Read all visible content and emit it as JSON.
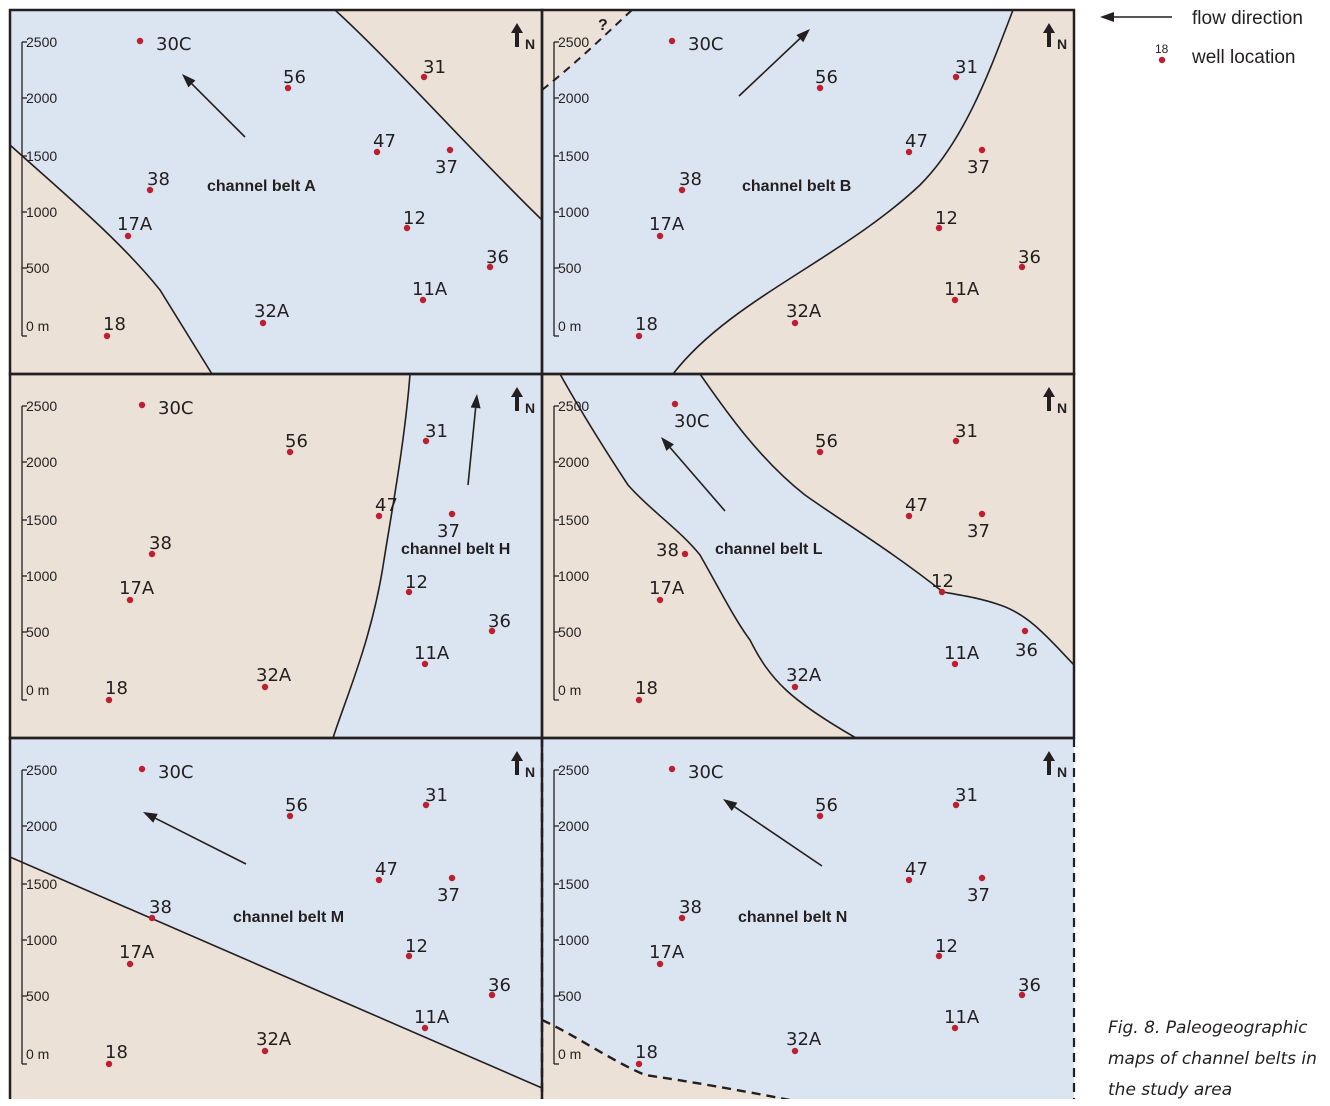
{
  "legend": {
    "flow_label": "flow direction",
    "well_label": "well location",
    "well_example_number": "18",
    "colors": {
      "arrow": "#231f20",
      "well_dot": "#be1e2d"
    }
  },
  "caption": {
    "lines": [
      "Fig. 8.  Paleogeographic",
      "maps of channel belts in",
      "the study area"
    ]
  },
  "map_style": {
    "channel_color": "#dbe5f1",
    "floodplain_color": "#ebe1d6",
    "boundary_color": "#231f20",
    "north_label": "N"
  },
  "scale_bar": {
    "ticks": [
      "2500",
      "2000",
      "1500",
      "1000",
      "500",
      "0 m"
    ]
  },
  "panels": [
    {
      "id": "A",
      "channel_label": "channel belt A",
      "uncertain_mark": ""
    },
    {
      "id": "B",
      "channel_label": "channel belt B",
      "uncertain_mark": "?"
    },
    {
      "id": "H",
      "channel_label": "channel belt H",
      "uncertain_mark": ""
    },
    {
      "id": "L",
      "channel_label": "channel belt L",
      "uncertain_mark": ""
    },
    {
      "id": "M",
      "channel_label": "channel belt M",
      "uncertain_mark": ""
    },
    {
      "id": "N",
      "channel_label": "channel belt N",
      "uncertain_mark": ""
    }
  ],
  "wells": [
    "30C",
    "56",
    "31",
    "47",
    "37",
    "38",
    "17A",
    "12",
    "36",
    "11A",
    "18",
    "32A"
  ]
}
